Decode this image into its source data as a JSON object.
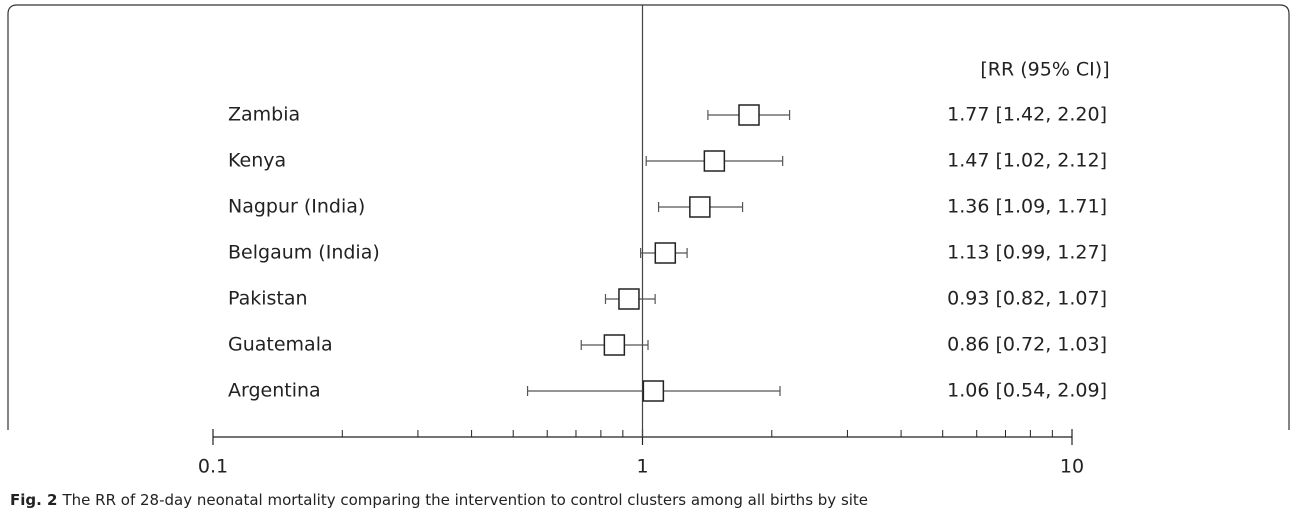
{
  "chart_data": {
    "type": "forest",
    "column_header": "[RR (95% CI)]",
    "categories": [
      "Zambia",
      "Kenya",
      "Nagpur (India)",
      "Belgaum (India)",
      "Pakistan",
      "Guatemala",
      "Argentina"
    ],
    "values": [
      1.77,
      1.47,
      1.36,
      1.13,
      0.93,
      0.86,
      1.06
    ],
    "ci_lower": [
      1.42,
      1.02,
      1.09,
      0.99,
      0.82,
      0.72,
      0.54
    ],
    "ci_upper": [
      2.2,
      2.12,
      1.71,
      1.27,
      1.07,
      1.03,
      2.09
    ],
    "value_labels": [
      "1.77 [1.42, 2.20]",
      "1.47 [1.02, 2.12]",
      "1.36 [1.09, 1.71]",
      "1.13 [0.99, 1.27]",
      "0.93 [0.82, 1.07]",
      "0.86 [0.72, 1.03]",
      "1.06 [0.54, 2.09]"
    ],
    "xscale": "log",
    "xlim": [
      0.1,
      10
    ],
    "xticks": [
      0.1,
      1,
      10
    ],
    "xminor_ticks": [
      0.2,
      0.3,
      0.4,
      0.5,
      0.6,
      0.7,
      0.8,
      0.9,
      2,
      3,
      4,
      5,
      6,
      7,
      8,
      9
    ],
    "reference_line": 1,
    "color": "#555555",
    "caption_label": "Fig. 2",
    "caption": "The RR of 28-day neonatal mortality comparing the intervention to control clusters among all births by site"
  }
}
